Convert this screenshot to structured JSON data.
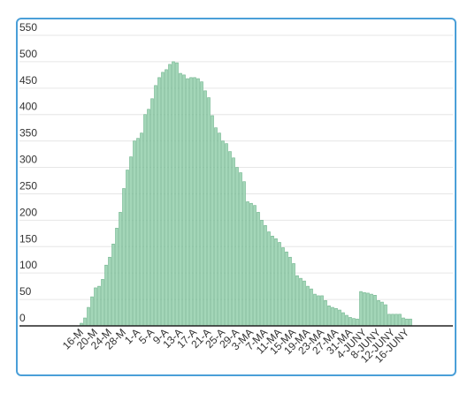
{
  "chart_data": {
    "type": "bar",
    "categories": [
      "16-M",
      null,
      null,
      null,
      "20-M",
      null,
      null,
      null,
      "24-M",
      null,
      null,
      null,
      "28-M",
      null,
      null,
      null,
      "1-A",
      null,
      null,
      null,
      "5-A",
      null,
      null,
      null,
      "9-A",
      null,
      null,
      null,
      "13-A",
      null,
      null,
      null,
      "17-A",
      null,
      null,
      null,
      "21-A",
      null,
      null,
      null,
      "25-A",
      null,
      null,
      null,
      "29-A",
      null,
      null,
      null,
      "3-MA",
      null,
      null,
      null,
      "7-MA",
      null,
      null,
      null,
      "11-MA",
      null,
      null,
      null,
      "15-MA",
      null,
      null,
      null,
      "19-MA",
      null,
      null,
      null,
      "23-MA",
      null,
      null,
      null,
      "27-MA",
      null,
      null,
      null,
      "31-MA",
      null,
      null,
      null,
      "4-JUNY",
      null,
      null,
      null,
      "8-JUNY",
      null,
      null,
      null,
      "12-JUNY",
      null,
      null,
      null,
      "16-JUNY",
      null
    ],
    "values": [
      5,
      15,
      35,
      55,
      72,
      75,
      88,
      115,
      130,
      155,
      185,
      215,
      260,
      295,
      320,
      350,
      355,
      365,
      400,
      410,
      430,
      455,
      470,
      480,
      485,
      495,
      500,
      498,
      478,
      475,
      468,
      470,
      470,
      468,
      462,
      445,
      432,
      398,
      375,
      365,
      350,
      345,
      330,
      318,
      300,
      290,
      273,
      235,
      232,
      228,
      215,
      200,
      190,
      178,
      170,
      165,
      158,
      148,
      140,
      130,
      118,
      95,
      90,
      85,
      75,
      70,
      60,
      57,
      57,
      48,
      38,
      35,
      33,
      30,
      25,
      20,
      16,
      14,
      13,
      65,
      63,
      62,
      60,
      58,
      48,
      45,
      40,
      22,
      22,
      22,
      22,
      15,
      13,
      13
    ],
    "color": "#a3d6b8",
    "ylim": [
      0,
      550
    ],
    "yticks": [
      0,
      50,
      100,
      150,
      200,
      250,
      300,
      350,
      400,
      450,
      500,
      550
    ],
    "grid": true
  }
}
